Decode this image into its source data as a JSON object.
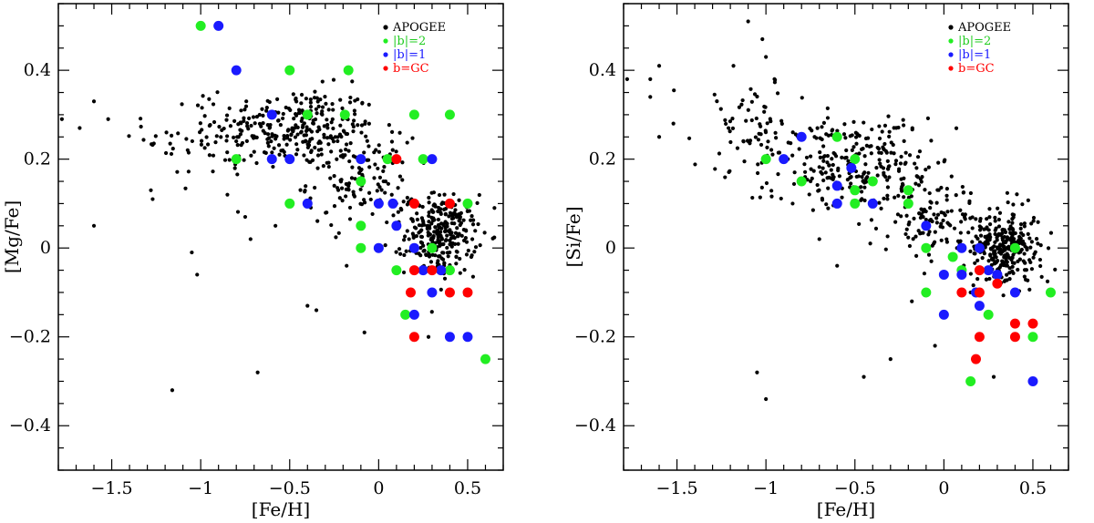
{
  "colors": {
    "APOGEE": "#000000",
    "b2": "#22ee22",
    "b1": "#1a1aff",
    "GC": "#ff0000"
  },
  "chart_data": [
    {
      "type": "scatter",
      "id": "mg",
      "xlabel": "[Fe/H]",
      "ylabel": "[Mg/Fe]",
      "xlim": [
        -1.8,
        0.7
      ],
      "ylim": [
        -0.5,
        0.55
      ],
      "xticks": [
        -1.5,
        -1,
        -0.5,
        0,
        0.5
      ],
      "xtick_labels": [
        "−1.5",
        "−1",
        "−0.5",
        "0",
        "0.5"
      ],
      "yticks": [
        -0.4,
        -0.2,
        0,
        0.2,
        0.4
      ],
      "ytick_labels": [
        "−0.4",
        "−0.2",
        "0",
        "0.2",
        "0.4"
      ],
      "legend": [
        "APOGEE",
        "|b|=2",
        "|b|=1",
        "b=GC"
      ],
      "apogee_clouds": [
        {
          "cx": -0.45,
          "cy": 0.27,
          "sx": 0.22,
          "sy": 0.045,
          "n": 260
        },
        {
          "cx": -0.95,
          "cy": 0.25,
          "sx": 0.18,
          "sy": 0.05,
          "n": 60
        },
        {
          "cx": -0.1,
          "cy": 0.15,
          "sx": 0.15,
          "sy": 0.05,
          "n": 120
        },
        {
          "cx": 0.35,
          "cy": 0.03,
          "sx": 0.1,
          "sy": 0.045,
          "n": 280
        }
      ],
      "apogee_outliers": [
        {
          "x": -1.78,
          "y": 0.29
        },
        {
          "x": -1.68,
          "y": 0.27
        },
        {
          "x": -1.6,
          "y": 0.33
        },
        {
          "x": -1.6,
          "y": 0.05
        },
        {
          "x": -1.52,
          "y": 0.29
        },
        {
          "x": -1.28,
          "y": 0.13
        },
        {
          "x": -1.27,
          "y": 0.11
        },
        {
          "x": -1.05,
          "y": -0.01
        },
        {
          "x": -1.02,
          "y": -0.06
        },
        {
          "x": -1.16,
          "y": -0.32
        },
        {
          "x": -0.72,
          "y": 0.02
        },
        {
          "x": -0.68,
          "y": -0.28
        },
        {
          "x": -0.4,
          "y": -0.13
        },
        {
          "x": -0.35,
          "y": -0.14
        },
        {
          "x": -0.18,
          "y": -0.04
        },
        {
          "x": -0.08,
          "y": -0.19
        },
        {
          "x": 0.28,
          "y": -0.2
        },
        {
          "x": -0.85,
          "y": 0.12
        },
        {
          "x": -0.75,
          "y": 0.07
        },
        {
          "x": -0.58,
          "y": 0.05
        }
      ],
      "b2": [
        {
          "x": -1.0,
          "y": 0.5
        },
        {
          "x": -0.5,
          "y": 0.4
        },
        {
          "x": -0.17,
          "y": 0.4
        },
        {
          "x": -0.8,
          "y": 0.2
        },
        {
          "x": -0.4,
          "y": 0.3
        },
        {
          "x": -0.19,
          "y": 0.3
        },
        {
          "x": -0.5,
          "y": 0.1
        },
        {
          "x": -0.1,
          "y": 0.15
        },
        {
          "x": 0.05,
          "y": 0.2
        },
        {
          "x": 0.25,
          "y": 0.2
        },
        {
          "x": 0.2,
          "y": 0.3
        },
        {
          "x": 0.4,
          "y": 0.3
        },
        {
          "x": -0.1,
          "y": 0.05
        },
        {
          "x": -0.1,
          "y": 0.0
        },
        {
          "x": 0.3,
          "y": 0.0
        },
        {
          "x": 0.1,
          "y": -0.05
        },
        {
          "x": 0.4,
          "y": -0.05
        },
        {
          "x": 0.15,
          "y": -0.15
        },
        {
          "x": 0.5,
          "y": 0.1
        },
        {
          "x": 0.6,
          "y": -0.25
        }
      ],
      "b1": [
        {
          "x": -0.9,
          "y": 0.5
        },
        {
          "x": -0.8,
          "y": 0.4
        },
        {
          "x": -0.6,
          "y": 0.3
        },
        {
          "x": -0.6,
          "y": 0.2
        },
        {
          "x": -0.5,
          "y": 0.2
        },
        {
          "x": -0.4,
          "y": 0.1
        },
        {
          "x": -0.1,
          "y": 0.2
        },
        {
          "x": 0.0,
          "y": 0.1
        },
        {
          "x": 0.08,
          "y": 0.1
        },
        {
          "x": 0.1,
          "y": 0.05
        },
        {
          "x": 0.3,
          "y": 0.2
        },
        {
          "x": 0.0,
          "y": 0.0
        },
        {
          "x": 0.2,
          "y": 0.0
        },
        {
          "x": 0.25,
          "y": -0.05
        },
        {
          "x": 0.35,
          "y": -0.05
        },
        {
          "x": 0.3,
          "y": -0.1
        },
        {
          "x": 0.2,
          "y": -0.15
        },
        {
          "x": 0.4,
          "y": -0.2
        },
        {
          "x": 0.5,
          "y": -0.2
        }
      ],
      "gc": [
        {
          "x": 0.1,
          "y": 0.2
        },
        {
          "x": 0.2,
          "y": 0.1
        },
        {
          "x": 0.4,
          "y": 0.1
        },
        {
          "x": 0.2,
          "y": -0.05
        },
        {
          "x": 0.3,
          "y": -0.05
        },
        {
          "x": 0.18,
          "y": -0.1
        },
        {
          "x": 0.4,
          "y": -0.1
        },
        {
          "x": 0.5,
          "y": -0.1
        },
        {
          "x": 0.2,
          "y": -0.2
        }
      ]
    },
    {
      "type": "scatter",
      "id": "si",
      "xlabel": "[Fe/H]",
      "ylabel": "[Si/Fe]",
      "xlim": [
        -1.8,
        0.7
      ],
      "ylim": [
        -0.5,
        0.55
      ],
      "xticks": [
        -1.5,
        -1,
        -0.5,
        0,
        0.5
      ],
      "xtick_labels": [
        "−1.5",
        "−1",
        "−0.5",
        "0",
        "0.5"
      ],
      "yticks": [
        -0.4,
        -0.2,
        0,
        0.2,
        0.4
      ],
      "ytick_labels": [
        "−0.4",
        "−0.2",
        "0",
        "0.2",
        "0.4"
      ],
      "legend": [
        "APOGEE",
        "|b|=2",
        "|b|=1",
        "b=GC"
      ],
      "apogee_clouds": [
        {
          "cx": -0.55,
          "cy": 0.2,
          "sx": 0.25,
          "sy": 0.05,
          "n": 260
        },
        {
          "cx": -1.05,
          "cy": 0.28,
          "sx": 0.15,
          "sy": 0.06,
          "n": 60
        },
        {
          "cx": -0.05,
          "cy": 0.07,
          "sx": 0.15,
          "sy": 0.05,
          "n": 120
        },
        {
          "cx": 0.35,
          "cy": 0.0,
          "sx": 0.1,
          "sy": 0.04,
          "n": 280
        }
      ],
      "apogee_outliers": [
        {
          "x": -1.78,
          "y": 0.38
        },
        {
          "x": -1.65,
          "y": 0.38
        },
        {
          "x": -1.6,
          "y": 0.41
        },
        {
          "x": -1.65,
          "y": 0.34
        },
        {
          "x": -1.6,
          "y": 0.25
        },
        {
          "x": -1.52,
          "y": 0.28
        },
        {
          "x": -1.1,
          "y": 0.51
        },
        {
          "x": -1.02,
          "y": 0.47
        },
        {
          "x": -1.0,
          "y": 0.43
        },
        {
          "x": -1.05,
          "y": -0.28
        },
        {
          "x": -1.0,
          "y": -0.34
        },
        {
          "x": -0.45,
          "y": -0.29
        },
        {
          "x": -0.3,
          "y": -0.25
        },
        {
          "x": -0.18,
          "y": -0.12
        },
        {
          "x": -0.05,
          "y": -0.22
        },
        {
          "x": 0.28,
          "y": -0.29
        },
        {
          "x": -0.6,
          "y": -0.04
        },
        {
          "x": -0.7,
          "y": 0.02
        },
        {
          "x": -0.85,
          "y": 0.1
        },
        {
          "x": 0.15,
          "y": -0.1
        }
      ],
      "b2": [
        {
          "x": -1.0,
          "y": 0.2
        },
        {
          "x": -0.8,
          "y": 0.15
        },
        {
          "x": -0.6,
          "y": 0.25
        },
        {
          "x": -0.5,
          "y": 0.2
        },
        {
          "x": -0.5,
          "y": 0.13
        },
        {
          "x": -0.5,
          "y": 0.1
        },
        {
          "x": -0.4,
          "y": 0.15
        },
        {
          "x": -0.2,
          "y": 0.13
        },
        {
          "x": -0.2,
          "y": 0.1
        },
        {
          "x": -0.1,
          "y": 0.0
        },
        {
          "x": -0.1,
          "y": -0.1
        },
        {
          "x": 0.05,
          "y": -0.02
        },
        {
          "x": 0.1,
          "y": -0.05
        },
        {
          "x": 0.25,
          "y": -0.15
        },
        {
          "x": 0.4,
          "y": 0.0
        },
        {
          "x": 0.5,
          "y": -0.2
        },
        {
          "x": 0.6,
          "y": -0.1
        },
        {
          "x": 0.15,
          "y": -0.3
        }
      ],
      "b1": [
        {
          "x": -0.8,
          "y": 0.25
        },
        {
          "x": -0.9,
          "y": 0.2
        },
        {
          "x": -0.6,
          "y": 0.14
        },
        {
          "x": -0.6,
          "y": 0.1
        },
        {
          "x": -0.52,
          "y": 0.18
        },
        {
          "x": -0.4,
          "y": 0.1
        },
        {
          "x": -0.1,
          "y": 0.05
        },
        {
          "x": 0.0,
          "y": -0.06
        },
        {
          "x": 0.1,
          "y": -0.06
        },
        {
          "x": 0.1,
          "y": 0.0
        },
        {
          "x": 0.0,
          "y": -0.15
        },
        {
          "x": 0.2,
          "y": 0.0
        },
        {
          "x": 0.18,
          "y": -0.1
        },
        {
          "x": 0.2,
          "y": -0.13
        },
        {
          "x": 0.25,
          "y": -0.05
        },
        {
          "x": 0.3,
          "y": -0.06
        },
        {
          "x": 0.4,
          "y": -0.1
        },
        {
          "x": 0.5,
          "y": -0.3
        }
      ],
      "gc": [
        {
          "x": 0.1,
          "y": -0.1
        },
        {
          "x": 0.2,
          "y": -0.05
        },
        {
          "x": 0.2,
          "y": -0.1
        },
        {
          "x": 0.3,
          "y": -0.08
        },
        {
          "x": 0.2,
          "y": -0.2
        },
        {
          "x": 0.18,
          "y": -0.25
        },
        {
          "x": 0.4,
          "y": -0.17
        },
        {
          "x": 0.4,
          "y": -0.2
        },
        {
          "x": 0.5,
          "y": -0.17
        }
      ]
    }
  ]
}
